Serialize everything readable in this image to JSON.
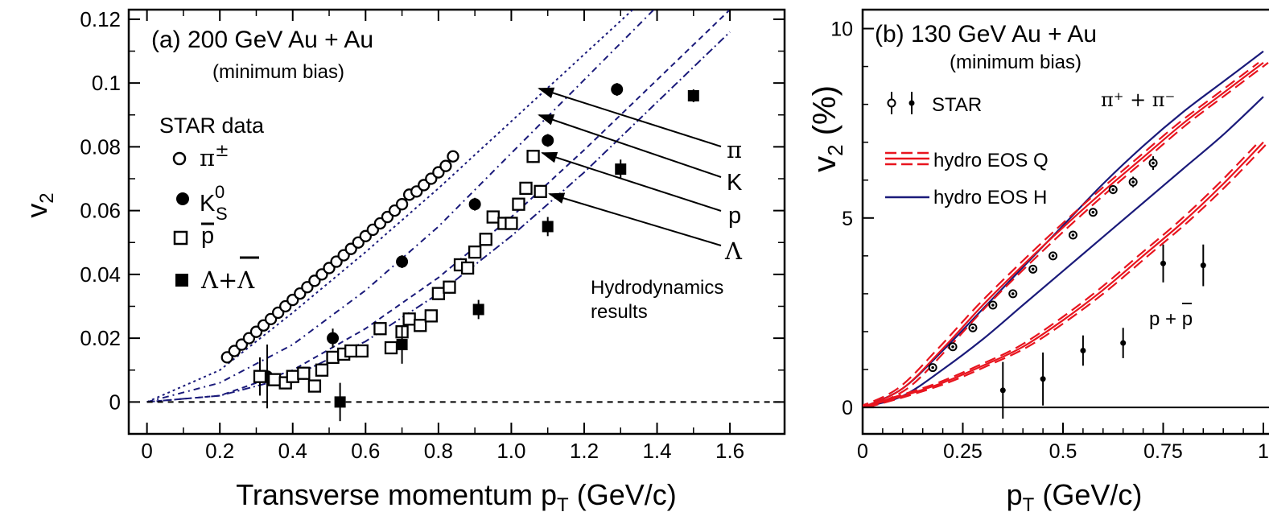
{
  "chart_data": [
    {
      "type": "scatter",
      "panel": "a",
      "title": "(a) 200 GeV Au + Au",
      "subtitle": "(minimum bias)",
      "xlabel": "Transverse momentum p",
      "xlabel_sub": "T",
      "xlabel_unit": " (GeV/c)",
      "ylabel": "v",
      "ylabel_sub": "2",
      "xlim": [
        -0.05,
        1.75
      ],
      "ylim": [
        -0.01,
        0.123
      ],
      "xticks": [
        0,
        0.2,
        0.4,
        0.6,
        0.8,
        1.0,
        1.2,
        1.4,
        1.6
      ],
      "xtick_labels": [
        "0",
        "0.2",
        "0.4",
        "0.6",
        "0.8",
        "1.0",
        "1.2",
        "1.4",
        "1.6"
      ],
      "yticks": [
        0,
        0.02,
        0.04,
        0.06,
        0.08,
        0.1,
        0.12
      ],
      "ytick_labels": [
        "0",
        "0.02",
        "0.04",
        "0.06",
        "0.08",
        "0.1",
        "0.12"
      ],
      "legend_title": "STAR data",
      "legend": [
        {
          "base": "π",
          "sup": "±",
          "marker": "open-circle"
        },
        {
          "base": "K",
          "sup": "0",
          "sub": "S",
          "marker": "filled-circle"
        },
        {
          "base": "p",
          "bar": true,
          "marker": "open-square"
        },
        {
          "base": "Λ+Λ",
          "bar": true,
          "marker": "filled-square"
        }
      ],
      "series": [
        {
          "name": "π±",
          "marker": "open-circle",
          "x": [
            0.22,
            0.24,
            0.26,
            0.28,
            0.3,
            0.32,
            0.34,
            0.36,
            0.38,
            0.4,
            0.42,
            0.44,
            0.46,
            0.48,
            0.5,
            0.52,
            0.54,
            0.56,
            0.58,
            0.6,
            0.62,
            0.64,
            0.66,
            0.68,
            0.7,
            0.72,
            0.74,
            0.76,
            0.78,
            0.8,
            0.82,
            0.84
          ],
          "y": [
            0.014,
            0.016,
            0.018,
            0.02,
            0.022,
            0.024,
            0.026,
            0.028,
            0.03,
            0.032,
            0.034,
            0.036,
            0.038,
            0.04,
            0.042,
            0.044,
            0.046,
            0.048,
            0.05,
            0.052,
            0.054,
            0.056,
            0.058,
            0.06,
            0.062,
            0.065,
            0.066,
            0.068,
            0.07,
            0.072,
            0.074,
            0.077
          ]
        },
        {
          "name": "K0S",
          "marker": "filled-circle",
          "x": [
            0.33,
            0.51,
            0.7,
            0.9,
            1.1,
            1.29
          ],
          "y": [
            0.008,
            0.02,
            0.044,
            0.062,
            0.082,
            0.098
          ],
          "err": [
            0.01,
            0.003,
            0.002,
            0.002,
            0.002,
            0.002
          ]
        },
        {
          "name": "p-bar",
          "marker": "open-square",
          "x": [
            0.31,
            0.35,
            0.38,
            0.4,
            0.43,
            0.46,
            0.48,
            0.51,
            0.54,
            0.56,
            0.59,
            0.64,
            0.67,
            0.7,
            0.72,
            0.75,
            0.78,
            0.8,
            0.83,
            0.86,
            0.88,
            0.9,
            0.93,
            0.95,
            0.98,
            1.0,
            1.02,
            1.04,
            1.06,
            1.08
          ],
          "y": [
            0.008,
            0.007,
            0.006,
            0.008,
            0.009,
            0.005,
            0.01,
            0.014,
            0.015,
            0.016,
            0.016,
            0.023,
            0.017,
            0.022,
            0.026,
            0.024,
            0.027,
            0.034,
            0.036,
            0.043,
            0.042,
            0.047,
            0.051,
            0.058,
            0.056,
            0.056,
            0.062,
            0.067,
            0.077,
            0.066
          ],
          "err": [
            0.006,
            0.002,
            0.002,
            0.002,
            0.002,
            0.002,
            0.002,
            0.002,
            0.002,
            0.002,
            0.002,
            0.002,
            0.002,
            0.002,
            0.002,
            0.002,
            0.002,
            0.002,
            0.002,
            0.002,
            0.002,
            0.002,
            0.002,
            0.002,
            0.002,
            0.002,
            0.002,
            0.002,
            0.002,
            0.002
          ]
        },
        {
          "name": "Λ+Λ-bar",
          "marker": "filled-square",
          "x": [
            0.53,
            0.7,
            0.91,
            1.1,
            1.3,
            1.5
          ],
          "y": [
            0.0,
            0.018,
            0.029,
            0.055,
            0.073,
            0.096
          ],
          "err": [
            0.006,
            0.006,
            0.003,
            0.003,
            0.003,
            0.002
          ]
        }
      ],
      "hydro_curves": [
        {
          "label": "π",
          "x": [
            0,
            0.2,
            0.4,
            0.6,
            0.8,
            1.0,
            1.2,
            1.4,
            1.6
          ],
          "y": [
            0,
            0.01,
            0.028,
            0.047,
            0.067,
            0.088,
            0.109,
            0.13,
            0.151
          ]
        },
        {
          "label": "K",
          "x": [
            0,
            0.2,
            0.4,
            0.6,
            0.8,
            1.0,
            1.2,
            1.4,
            1.6
          ],
          "y": [
            0,
            0.006,
            0.018,
            0.035,
            0.055,
            0.078,
            0.101,
            0.124,
            0.147
          ]
        },
        {
          "label": "p",
          "x": [
            0,
            0.2,
            0.4,
            0.6,
            0.8,
            1.0,
            1.2,
            1.4,
            1.6
          ],
          "y": [
            0,
            0.002,
            0.01,
            0.023,
            0.039,
            0.058,
            0.079,
            0.101,
            0.123
          ]
        },
        {
          "label": "Λ",
          "x": [
            0,
            0.2,
            0.4,
            0.6,
            0.8,
            1.0,
            1.2,
            1.4,
            1.6
          ],
          "y": [
            0,
            0.002,
            0.008,
            0.019,
            0.034,
            0.052,
            0.072,
            0.094,
            0.116
          ]
        }
      ],
      "zero_line": 0,
      "annotation_lines": [
        "Hydrodynamics",
        "results"
      ],
      "annotation_labels": [
        "π",
        "K",
        "p",
        "Λ"
      ]
    },
    {
      "type": "line",
      "panel": "b",
      "title": "(b) 130 GeV Au + Au",
      "subtitle": "(minimum bias)",
      "xlabel": "p",
      "xlabel_sub": "T",
      "xlabel_unit": " (GeV/c)",
      "ylabel": "v",
      "ylabel_sub": "2",
      "ylabel_unit": " (%)",
      "xlim": [
        0,
        1.0
      ],
      "ylim": [
        -0.7,
        10.5
      ],
      "xticks": [
        0,
        0.25,
        0.5,
        0.75,
        1.0
      ],
      "xtick_labels": [
        "0",
        "0.25",
        "0.5",
        "0.75",
        "1"
      ],
      "yticks": [
        0,
        5,
        10
      ],
      "ytick_labels": [
        "0",
        "5",
        "10"
      ],
      "legend": [
        {
          "label": "STAR",
          "style": "marker"
        },
        {
          "label": "hydro EOS Q",
          "style": "red-dashed"
        },
        {
          "label": "hydro EOS H",
          "style": "navy-solid"
        }
      ],
      "group_labels": {
        "pion": "π⁺ + π⁻",
        "proton": "p + p"
      },
      "series": [
        {
          "name": "STAR π⁺+π⁻",
          "x": [
            0.175,
            0.225,
            0.275,
            0.325,
            0.375,
            0.425,
            0.475,
            0.525,
            0.575,
            0.625,
            0.675,
            0.725
          ],
          "y": [
            1.05,
            1.6,
            2.1,
            2.7,
            3.0,
            3.65,
            4.0,
            4.55,
            5.15,
            5.75,
            5.95,
            6.45
          ],
          "err": [
            0.07,
            0.07,
            0.07,
            0.08,
            0.08,
            0.09,
            0.09,
            0.1,
            0.11,
            0.12,
            0.14,
            0.18
          ]
        },
        {
          "name": "STAR p+p̄",
          "x": [
            0.35,
            0.45,
            0.55,
            0.65,
            0.75,
            0.85
          ],
          "y": [
            0.45,
            0.75,
            1.5,
            1.7,
            3.8,
            3.75
          ],
          "err": [
            0.75,
            0.7,
            0.4,
            0.4,
            0.5,
            0.55
          ]
        },
        {
          "name": "hydro EOS H π",
          "style": "navy-solid",
          "x": [
            0,
            0.1,
            0.2,
            0.3,
            0.4,
            0.5,
            0.6,
            0.7,
            0.8,
            0.9,
            1.0
          ],
          "y": [
            0,
            0.5,
            1.5,
            2.6,
            3.7,
            4.8,
            5.9,
            6.9,
            7.8,
            8.6,
            9.4
          ]
        },
        {
          "name": "hydro EOS Q π",
          "style": "red-solid",
          "x": [
            0,
            0.1,
            0.2,
            0.3,
            0.4,
            0.5,
            0.6,
            0.7,
            0.8,
            0.9,
            1.0
          ],
          "y": [
            0,
            0.5,
            1.55,
            2.7,
            3.75,
            4.75,
            5.7,
            6.6,
            7.5,
            8.3,
            9.1
          ]
        },
        {
          "name": "hydro EOS H p",
          "style": "navy-solid",
          "x": [
            0,
            0.1,
            0.2,
            0.3,
            0.4,
            0.5,
            0.6,
            0.7,
            0.8,
            0.9,
            1.0
          ],
          "y": [
            0,
            0.3,
            1.0,
            1.8,
            2.7,
            3.6,
            4.5,
            5.4,
            6.3,
            7.2,
            8.2
          ]
        },
        {
          "name": "hydro EOS Q p",
          "style": "red-solid",
          "x": [
            0,
            0.1,
            0.2,
            0.3,
            0.4,
            0.5,
            0.6,
            0.7,
            0.8,
            0.9,
            1.0
          ],
          "y": [
            0,
            0.3,
            0.65,
            1.1,
            1.6,
            2.3,
            3.1,
            4.0,
            4.9,
            5.9,
            7.0
          ]
        }
      ],
      "zero_line": 0
    }
  ]
}
